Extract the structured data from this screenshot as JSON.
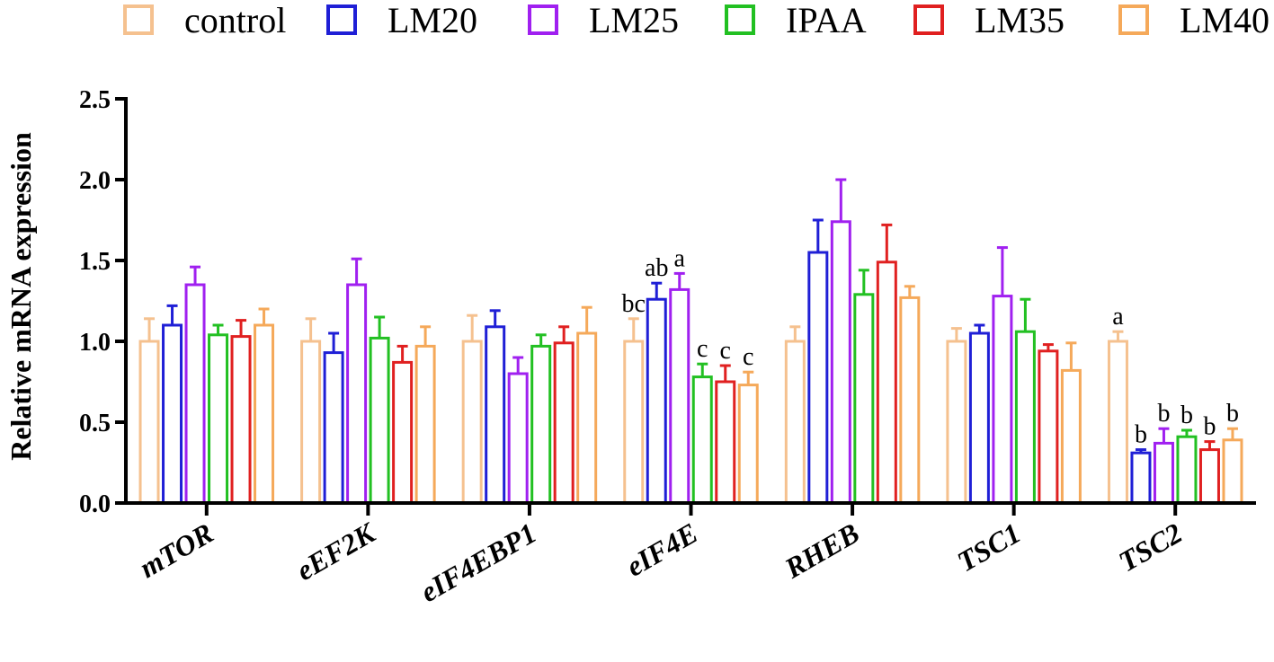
{
  "chart_data": {
    "type": "bar",
    "title": "",
    "xlabel": "",
    "ylabel": "Relative mRNA expression",
    "ylim": [
      0,
      2.5
    ],
    "yticks": [
      0.0,
      0.5,
      1.0,
      1.5,
      2.0,
      2.5
    ],
    "ytick_labels": [
      "0.0",
      "0.5",
      "1.0",
      "1.5",
      "2.0",
      "2.5"
    ],
    "legend_position": "top",
    "categories": [
      "mTOR",
      "eEF2K",
      "eIF4EBP1",
      "eIF4E",
      "RHEB",
      "TSC1",
      "TSC2"
    ],
    "series": [
      {
        "name": "control",
        "color": "#F5C18F",
        "values": [
          1.0,
          1.0,
          1.0,
          1.0,
          1.0,
          1.0,
          1.0
        ],
        "errors": [
          0.14,
          0.14,
          0.16,
          0.14,
          0.09,
          0.08,
          0.06
        ],
        "labels": [
          "",
          "",
          "",
          "bc",
          "",
          "",
          "a"
        ]
      },
      {
        "name": "LM20",
        "color": "#1F1FD6",
        "values": [
          1.1,
          0.93,
          1.09,
          1.26,
          1.55,
          1.05,
          0.31
        ],
        "errors": [
          0.12,
          0.12,
          0.1,
          0.1,
          0.2,
          0.05,
          0.02
        ],
        "labels": [
          "",
          "",
          "",
          "ab",
          "",
          "",
          "b"
        ]
      },
      {
        "name": "LM25",
        "color": "#A020F0",
        "values": [
          1.35,
          1.35,
          0.8,
          1.32,
          1.74,
          1.28,
          0.37
        ],
        "errors": [
          0.11,
          0.16,
          0.1,
          0.1,
          0.26,
          0.3,
          0.09
        ],
        "labels": [
          "",
          "",
          "",
          "a",
          "",
          "",
          "b"
        ]
      },
      {
        "name": "IPAA",
        "color": "#22C022",
        "values": [
          1.04,
          1.02,
          0.97,
          0.78,
          1.29,
          1.06,
          0.41
        ],
        "errors": [
          0.06,
          0.13,
          0.07,
          0.08,
          0.15,
          0.2,
          0.04
        ],
        "labels": [
          "",
          "",
          "",
          "c",
          "",
          "",
          "b"
        ]
      },
      {
        "name": "LM35",
        "color": "#E02020",
        "values": [
          1.03,
          0.87,
          0.99,
          0.75,
          1.49,
          0.94,
          0.33
        ],
        "errors": [
          0.1,
          0.1,
          0.1,
          0.1,
          0.23,
          0.04,
          0.05
        ],
        "labels": [
          "",
          "",
          "",
          "c",
          "",
          "",
          "b"
        ]
      },
      {
        "name": "LM40",
        "color": "#F5A95A",
        "values": [
          1.1,
          0.97,
          1.05,
          0.73,
          1.27,
          0.82,
          0.39
        ],
        "errors": [
          0.1,
          0.12,
          0.16,
          0.08,
          0.07,
          0.17,
          0.07
        ],
        "labels": [
          "",
          "",
          "",
          "c",
          "",
          "",
          "b"
        ]
      }
    ]
  }
}
